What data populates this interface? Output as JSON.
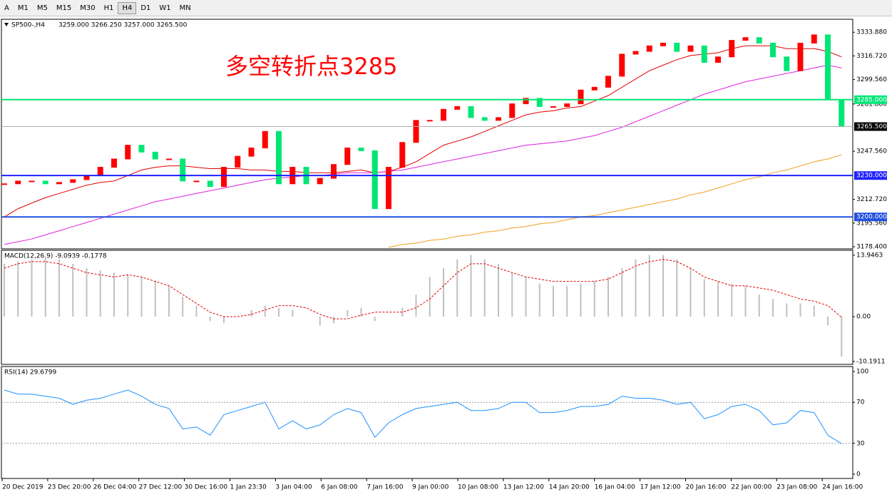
{
  "toolbar": {
    "buttons": [
      "A",
      "M1",
      "M5",
      "M15",
      "M30",
      "H1",
      "H4",
      "D1",
      "W1",
      "MN"
    ],
    "active": "H4"
  },
  "time_axis": [
    "20 Dec 2019",
    "23 Dec 20:00",
    "26 Dec 04:00",
    "27 Dec 12:00",
    "30 Dec 16:00",
    "1 Jan 23:30",
    "3 Jan 04:00",
    "6 Jan 08:00",
    "7 Jan 16:00",
    "9 Jan 00:00",
    "10 Jan 08:00",
    "13 Jan 12:00",
    "14 Jan 20:00",
    "16 Jan 04:00",
    "17 Jan 12:00",
    "20 Jan 16:00",
    "22 Jan 00:00",
    "23 Jan 08:00",
    "24 Jan 16:00"
  ],
  "chart_data": [
    {
      "type": "candlestick",
      "title": "SP500-,H4",
      "ohlc_text": "3259.000 3266.250 3257.000 3265.500",
      "annotation": "多空转折点3285",
      "up_color": "#ff0000",
      "down_color": "#00e676",
      "closes": [
        3224,
        3226,
        3226,
        3224,
        3225,
        3227,
        3230,
        3236,
        3242,
        3252,
        3247,
        3242,
        3242,
        3226,
        3226,
        3222,
        3236,
        3244,
        3250,
        3262,
        3224,
        3236,
        3224,
        3228,
        3238,
        3250,
        3248,
        3206,
        3236,
        3254,
        3270,
        3270,
        3278,
        3280,
        3272,
        3270,
        3272,
        3282,
        3286,
        3280,
        3280,
        3282,
        3292,
        3294,
        3302,
        3318,
        3320,
        3324,
        3326,
        3320,
        3324,
        3312,
        3316,
        3328,
        3330,
        3326,
        3316,
        3306,
        3326,
        3332,
        3285,
        3265.5
      ],
      "moving_averages": [
        {
          "color": "#e00000",
          "values": [
            3200,
            3206,
            3210,
            3214,
            3217,
            3220,
            3223,
            3225,
            3226,
            3230,
            3234,
            3236,
            3237,
            3237,
            3236,
            3235,
            3235,
            3235,
            3234,
            3234,
            3233,
            3233,
            3232,
            3232,
            3232,
            3233,
            3234,
            3232,
            3233,
            3236,
            3240,
            3246,
            3252,
            3255,
            3258,
            3262,
            3266,
            3270,
            3274,
            3276,
            3277,
            3279,
            3280,
            3284,
            3288,
            3294,
            3300,
            3306,
            3310,
            3314,
            3317,
            3318,
            3319,
            3322,
            3324,
            3324,
            3324,
            3322,
            3322,
            3322,
            3320,
            3316
          ]
        },
        {
          "color": "#e020e0",
          "values": [
            3180,
            3182,
            3184,
            3187,
            3190,
            3193,
            3196,
            3199,
            3202,
            3205,
            3208,
            3211,
            3213,
            3215,
            3217,
            3219,
            3221,
            3223,
            3225,
            3227,
            3228,
            3229,
            3230,
            3230,
            3231,
            3232,
            3232,
            3232,
            3233,
            3234,
            3236,
            3238,
            3240,
            3242,
            3244,
            3246,
            3248,
            3250,
            3252,
            3253,
            3254,
            3255,
            3257,
            3259,
            3262,
            3265,
            3269,
            3273,
            3277,
            3281,
            3285,
            3289,
            3292,
            3295,
            3298,
            3300,
            3302,
            3304,
            3306,
            3308,
            3310,
            3308
          ]
        },
        {
          "color": "#f0a020",
          "values": [
            null,
            null,
            null,
            null,
            null,
            null,
            null,
            null,
            null,
            null,
            null,
            null,
            null,
            null,
            null,
            null,
            null,
            null,
            null,
            null,
            null,
            null,
            null,
            null,
            null,
            null,
            null,
            null,
            3178,
            3180,
            3181,
            3183,
            3184,
            3186,
            3187,
            3189,
            3190,
            3192,
            3193,
            3195,
            3196,
            3198,
            3200,
            3201,
            3203,
            3205,
            3207,
            3209,
            3211,
            3213,
            3216,
            3218,
            3221,
            3224,
            3227,
            3229,
            3232,
            3234,
            3237,
            3240,
            3242,
            3245
          ]
        }
      ],
      "ylim": [
        3176.85,
        3343.3
      ],
      "yticks": [
        {
          "value": 3333.88,
          "label": "3333.880"
        },
        {
          "value": 3316.72,
          "label": "3316.720"
        },
        {
          "value": 3299.56,
          "label": "3299.560"
        },
        {
          "value": 3281.88,
          "label": "3281.880"
        },
        {
          "value": 3247.56,
          "label": "3247.560"
        },
        {
          "value": 3212.72,
          "label": "3212.720"
        },
        {
          "value": 3195.56,
          "label": "3195.560"
        },
        {
          "value": 3178.4,
          "label": "3178.400"
        }
      ],
      "levels": [
        {
          "value": 3285,
          "label": "3285.000",
          "color": "#00e676"
        },
        {
          "value": 3230,
          "label": "3230.000",
          "color": "#2020ff"
        },
        {
          "value": 3200,
          "label": "3200.000",
          "color": "#2050e0"
        },
        {
          "value": 3265.5,
          "label": "3265.500",
          "color": "#b0b0b0"
        }
      ]
    },
    {
      "type": "macd",
      "title": "MACD(12,26,9) -9.0939 -0.1778",
      "hist_color": "#c0c0c0",
      "signal_color": "#e00000",
      "ylim": [
        -10.86,
        15.07
      ],
      "yticks": [
        13.9463,
        {
          "value": 0,
          "label": "0.00"
        },
        -10.1911
      ],
      "histogram": [
        12,
        12.5,
        13,
        13.5,
        13,
        12,
        11,
        10.5,
        10,
        9.5,
        9,
        8,
        7,
        4.5,
        2.5,
        -1,
        -1.5,
        0,
        1.5,
        2.5,
        2,
        1.5,
        0,
        -2,
        -1.5,
        1.5,
        2,
        -1,
        0,
        2,
        5,
        9,
        11,
        13,
        14,
        13,
        12,
        10,
        9,
        7.5,
        7,
        7,
        7.5,
        8,
        9,
        11,
        13,
        14,
        14,
        13,
        11,
        8.5,
        8,
        7.5,
        7,
        5,
        4,
        3,
        3,
        2.5,
        -2,
        -9.1
      ],
      "signal": [
        11,
        12,
        12.5,
        12.5,
        12,
        11,
        10,
        9.5,
        9,
        9.5,
        9,
        8,
        7,
        5,
        3,
        1,
        0,
        0,
        0.5,
        1.5,
        2.5,
        2.5,
        2,
        0.5,
        -0.5,
        -0.5,
        0.3,
        1,
        1,
        1,
        2,
        4,
        7,
        10,
        12,
        12,
        11,
        10,
        9,
        8.5,
        8,
        8,
        8,
        8,
        8.5,
        10,
        11.5,
        12.5,
        13,
        12.5,
        11,
        9,
        8,
        7,
        7,
        6.5,
        6,
        5,
        4,
        3.5,
        2.5,
        -0.2
      ]
    },
    {
      "type": "rsi",
      "title": "RSI(14) 29.6799",
      "color": "#1e90ff",
      "ylim": [
        -4.2,
        104.9
      ],
      "yticks": [
        100,
        70,
        30,
        0
      ],
      "values": [
        82,
        78,
        78,
        76,
        74,
        68,
        72,
        74,
        78,
        82,
        76,
        68,
        64,
        44,
        46,
        38,
        58,
        62,
        66,
        70,
        44,
        52,
        44,
        48,
        58,
        64,
        60,
        36,
        50,
        58,
        64,
        66,
        68,
        70,
        62,
        62,
        64,
        70,
        70,
        60,
        60,
        62,
        66,
        66,
        68,
        76,
        74,
        74,
        72,
        68,
        70,
        54,
        58,
        66,
        68,
        62,
        48,
        50,
        62,
        60,
        38,
        29.7
      ]
    }
  ]
}
